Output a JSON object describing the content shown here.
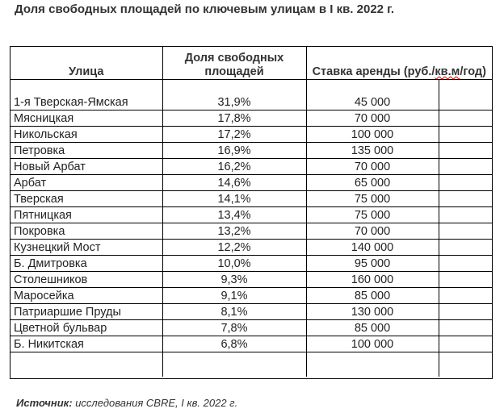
{
  "title": "Доля свободных площадей по ключевым улицам в I кв. 2022 г.",
  "columns": [
    "Улица",
    "Доля свободных площадей",
    "Ставка аренды (руб./кв.м/год)"
  ],
  "rows": [
    {
      "street": "1-я Тверская-Ямская",
      "share": "31,9%",
      "rate": "45 000"
    },
    {
      "street": "Мясницкая",
      "share": "17,8%",
      "rate": "70 000"
    },
    {
      "street": "Никольская",
      "share": "17,2%",
      "rate": "100 000"
    },
    {
      "street": "Петровка",
      "share": "16,9%",
      "rate": "135 000"
    },
    {
      "street": "Новый Арбат",
      "share": "16,2%",
      "rate": "70 000"
    },
    {
      "street": "Арбат",
      "share": "14,6%",
      "rate": "65 000"
    },
    {
      "street": "Тверская",
      "share": "14,1%",
      "rate": "75 000"
    },
    {
      "street": "Пятницкая",
      "share": "13,4%",
      "rate": "75 000"
    },
    {
      "street": "Покровка",
      "share": "13,2%",
      "rate": "70 000"
    },
    {
      "street": "Кузнецкий Мост",
      "share": "12,2%",
      "rate": "140 000"
    },
    {
      "street": "Б. Дмитровка",
      "share": "10,0%",
      "rate": "95 000"
    },
    {
      "street": "Столешников",
      "share": "9,3%",
      "rate": "160 000"
    },
    {
      "street": "Маросейка",
      "share": "9,1%",
      "rate": "85 000"
    },
    {
      "street": "Патриаршие Пруды",
      "share": "8,1%",
      "rate": "130 000"
    },
    {
      "street": "Цветной бульвар",
      "share": "7,8%",
      "rate": "85 000"
    },
    {
      "street": "Б. Никитская",
      "share": "6,8%",
      "rate": "100 000"
    }
  ],
  "source": {
    "label": "Источник:",
    "text": "исследования CBRE, I кв. 2022 г."
  }
}
